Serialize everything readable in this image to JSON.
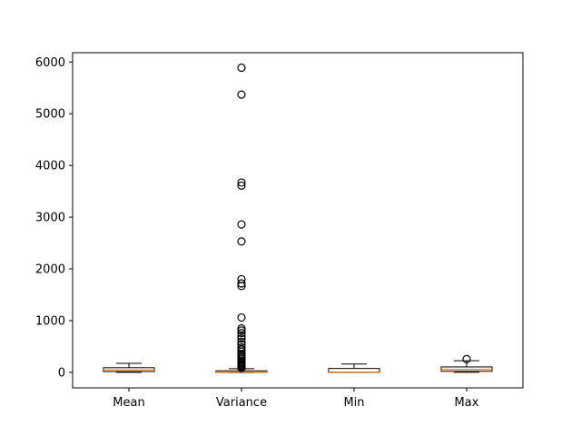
{
  "chart_data": {
    "type": "box",
    "title": "",
    "xlabel": "",
    "ylabel": "",
    "ylim": [
      -300,
      6180
    ],
    "yticks": [
      0,
      1000,
      2000,
      3000,
      4000,
      5000,
      6000
    ],
    "ytick_labels": [
      "0",
      "1000",
      "2000",
      "3000",
      "4000",
      "5000",
      "6000"
    ],
    "grid": false,
    "legend": "none",
    "colors": {
      "box": "#000000",
      "median": "#ff7f0e",
      "flier": "#000000"
    },
    "categories": [
      "Mean",
      "Variance",
      "Min",
      "Max"
    ],
    "boxes": [
      {
        "name": "Mean",
        "whisker_low": 0,
        "q1": 15,
        "median": 45,
        "q3": 90,
        "whisker_high": 175,
        "fliers": []
      },
      {
        "name": "Variance",
        "whisker_low": 0,
        "q1": 2,
        "median": 10,
        "q3": 30,
        "whisker_high": 70,
        "fliers": [
          5890,
          5370,
          3670,
          3610,
          2860,
          2530,
          1800,
          1720,
          1670,
          1060,
          850,
          810,
          760,
          700,
          650,
          590,
          540,
          480,
          440,
          400,
          360,
          330,
          290,
          260,
          230,
          200,
          180,
          160,
          140,
          120,
          100,
          85
        ]
      },
      {
        "name": "Min",
        "whisker_low": 0,
        "q1": 0,
        "median": 5,
        "q3": 75,
        "whisker_high": 160,
        "fliers": []
      },
      {
        "name": "Max",
        "whisker_low": 0,
        "q1": 20,
        "median": 55,
        "q3": 105,
        "whisker_high": 225,
        "fliers": [
          255
        ]
      }
    ]
  }
}
